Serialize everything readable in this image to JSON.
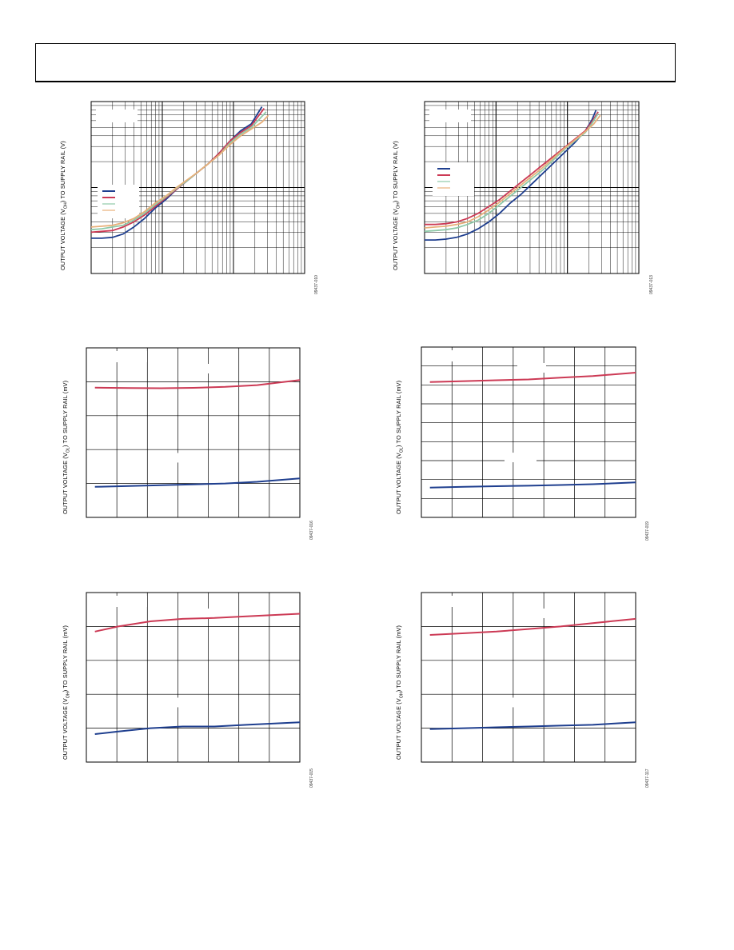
{
  "page": {},
  "charts": [
    {
      "id": "c1",
      "type": "line",
      "scale": "log",
      "ylabel_pre": "OUTPUT VOLTAGE (V",
      "ylabel_sub": "OH",
      "ylabel_post": ") TO SUPPLY RAIL (V)",
      "fig_id": "09437-010",
      "legend_colors": [
        "#1f3f8f",
        "#cc3a55",
        "#8fc9a8",
        "#e8b07a"
      ],
      "series": [
        {
          "color": "#1f3f8f",
          "pts": [
            [
              0,
              0.205
            ],
            [
              0.05,
              0.205
            ],
            [
              0.1,
              0.21
            ],
            [
              0.15,
              0.23
            ],
            [
              0.2,
              0.27
            ],
            [
              0.25,
              0.32
            ],
            [
              0.3,
              0.38
            ],
            [
              0.35,
              0.43
            ],
            [
              0.4,
              0.49
            ],
            [
              0.45,
              0.54
            ],
            [
              0.5,
              0.59
            ],
            [
              0.55,
              0.64
            ],
            [
              0.6,
              0.7
            ],
            [
              0.65,
              0.77
            ],
            [
              0.7,
              0.83
            ],
            [
              0.75,
              0.87
            ],
            [
              0.78,
              0.93
            ],
            [
              0.8,
              0.97
            ]
          ]
        },
        {
          "color": "#cc3a55",
          "pts": [
            [
              0,
              0.24
            ],
            [
              0.05,
              0.245
            ],
            [
              0.1,
              0.25
            ],
            [
              0.15,
              0.27
            ],
            [
              0.2,
              0.3
            ],
            [
              0.25,
              0.34
            ],
            [
              0.3,
              0.39
            ],
            [
              0.35,
              0.44
            ],
            [
              0.4,
              0.49
            ],
            [
              0.45,
              0.54
            ],
            [
              0.5,
              0.59
            ],
            [
              0.55,
              0.64
            ],
            [
              0.6,
              0.7
            ],
            [
              0.65,
              0.77
            ],
            [
              0.7,
              0.82
            ],
            [
              0.75,
              0.86
            ],
            [
              0.78,
              0.91
            ],
            [
              0.81,
              0.96
            ]
          ]
        },
        {
          "color": "#8fc9a8",
          "pts": [
            [
              0,
              0.255
            ],
            [
              0.05,
              0.26
            ],
            [
              0.1,
              0.27
            ],
            [
              0.15,
              0.28
            ],
            [
              0.2,
              0.31
            ],
            [
              0.25,
              0.35
            ],
            [
              0.3,
              0.4
            ],
            [
              0.35,
              0.445
            ],
            [
              0.4,
              0.495
            ],
            [
              0.45,
              0.54
            ],
            [
              0.5,
              0.59
            ],
            [
              0.55,
              0.64
            ],
            [
              0.6,
              0.69
            ],
            [
              0.65,
              0.76
            ],
            [
              0.7,
              0.81
            ],
            [
              0.75,
              0.85
            ],
            [
              0.79,
              0.9
            ],
            [
              0.82,
              0.94
            ]
          ]
        },
        {
          "color": "#e8b07a",
          "pts": [
            [
              0,
              0.27
            ],
            [
              0.05,
              0.275
            ],
            [
              0.1,
              0.28
            ],
            [
              0.15,
              0.295
            ],
            [
              0.2,
              0.32
            ],
            [
              0.25,
              0.36
            ],
            [
              0.3,
              0.41
            ],
            [
              0.35,
              0.45
            ],
            [
              0.4,
              0.5
            ],
            [
              0.45,
              0.545
            ],
            [
              0.5,
              0.59
            ],
            [
              0.55,
              0.64
            ],
            [
              0.6,
              0.69
            ],
            [
              0.65,
              0.75
            ],
            [
              0.7,
              0.8
            ],
            [
              0.75,
              0.84
            ],
            [
              0.8,
              0.88
            ],
            [
              0.83,
              0.92
            ]
          ]
        }
      ]
    },
    {
      "id": "c2",
      "type": "line",
      "scale": "log",
      "ylabel_pre": "OUTPUT VOLTAGE (V",
      "ylabel_sub": "OH",
      "ylabel_post": ") TO SUPPLY RAIL (V)",
      "fig_id": "09437-013",
      "legend_colors": [
        "#1f3f8f",
        "#cc3a55",
        "#8fc9a8",
        "#e8b07a"
      ],
      "series": [
        {
          "color": "#1f3f8f",
          "pts": [
            [
              0,
              0.195
            ],
            [
              0.05,
              0.195
            ],
            [
              0.1,
              0.2
            ],
            [
              0.15,
              0.21
            ],
            [
              0.2,
              0.23
            ],
            [
              0.25,
              0.26
            ],
            [
              0.3,
              0.3
            ],
            [
              0.35,
              0.35
            ],
            [
              0.4,
              0.41
            ],
            [
              0.45,
              0.46
            ],
            [
              0.5,
              0.52
            ],
            [
              0.55,
              0.58
            ],
            [
              0.6,
              0.64
            ],
            [
              0.65,
              0.7
            ],
            [
              0.7,
              0.76
            ],
            [
              0.75,
              0.83
            ],
            [
              0.78,
              0.89
            ],
            [
              0.8,
              0.95
            ]
          ]
        },
        {
          "color": "#cc3a55",
          "pts": [
            [
              0,
              0.285
            ],
            [
              0.05,
              0.285
            ],
            [
              0.1,
              0.29
            ],
            [
              0.15,
              0.3
            ],
            [
              0.2,
              0.32
            ],
            [
              0.25,
              0.35
            ],
            [
              0.3,
              0.39
            ],
            [
              0.35,
              0.43
            ],
            [
              0.4,
              0.48
            ],
            [
              0.45,
              0.53
            ],
            [
              0.5,
              0.58
            ],
            [
              0.55,
              0.63
            ],
            [
              0.6,
              0.68
            ],
            [
              0.65,
              0.73
            ],
            [
              0.7,
              0.78
            ],
            [
              0.75,
              0.83
            ],
            [
              0.78,
              0.88
            ],
            [
              0.81,
              0.94
            ]
          ]
        },
        {
          "color": "#8fc9a8",
          "pts": [
            [
              0,
              0.245
            ],
            [
              0.05,
              0.25
            ],
            [
              0.1,
              0.255
            ],
            [
              0.15,
              0.265
            ],
            [
              0.2,
              0.285
            ],
            [
              0.25,
              0.31
            ],
            [
              0.3,
              0.35
            ],
            [
              0.35,
              0.4
            ],
            [
              0.4,
              0.45
            ],
            [
              0.45,
              0.5
            ],
            [
              0.5,
              0.55
            ],
            [
              0.55,
              0.6
            ],
            [
              0.6,
              0.66
            ],
            [
              0.65,
              0.72
            ],
            [
              0.7,
              0.77
            ],
            [
              0.75,
              0.82
            ],
            [
              0.78,
              0.87
            ],
            [
              0.81,
              0.93
            ]
          ]
        },
        {
          "color": "#e8b07a",
          "pts": [
            [
              0,
              0.265
            ],
            [
              0.05,
              0.27
            ],
            [
              0.1,
              0.275
            ],
            [
              0.15,
              0.285
            ],
            [
              0.2,
              0.3
            ],
            [
              0.25,
              0.33
            ],
            [
              0.3,
              0.37
            ],
            [
              0.35,
              0.415
            ],
            [
              0.4,
              0.465
            ],
            [
              0.45,
              0.515
            ],
            [
              0.5,
              0.565
            ],
            [
              0.55,
              0.615
            ],
            [
              0.6,
              0.67
            ],
            [
              0.65,
              0.725
            ],
            [
              0.7,
              0.775
            ],
            [
              0.75,
              0.825
            ],
            [
              0.79,
              0.87
            ],
            [
              0.82,
              0.92
            ]
          ]
        }
      ]
    },
    {
      "id": "c3",
      "type": "line",
      "scale": "linear",
      "xdiv": 7,
      "ydiv": 5,
      "ylabel_pre": "OUTPUT VOLTAGE (V",
      "ylabel_sub": "OL",
      "ylabel_post": ") TO SUPPLY RAIL (mV)",
      "fig_id": "09437-016",
      "series": [
        {
          "color": "#cc3a55",
          "pts": [
            [
              0.04,
              0.765
            ],
            [
              0.2,
              0.763
            ],
            [
              0.35,
              0.762
            ],
            [
              0.5,
              0.764
            ],
            [
              0.65,
              0.77
            ],
            [
              0.8,
              0.78
            ],
            [
              1.0,
              0.81
            ]
          ]
        },
        {
          "color": "#1f3f8f",
          "pts": [
            [
              0.04,
              0.18
            ],
            [
              0.2,
              0.185
            ],
            [
              0.35,
              0.19
            ],
            [
              0.5,
              0.195
            ],
            [
              0.65,
              0.2
            ],
            [
              0.8,
              0.21
            ],
            [
              1.0,
              0.23
            ]
          ]
        }
      ]
    },
    {
      "id": "c4",
      "type": "line",
      "scale": "linear",
      "xdiv": 7,
      "ydiv": 9,
      "ylabel_pre": "OUTPUT VOLTAGE (V",
      "ylabel_sub": "OL",
      "ylabel_post": ") TO SUPPLY RAIL (mV)",
      "fig_id": "09437-019",
      "series": [
        {
          "color": "#cc3a55",
          "pts": [
            [
              0.04,
              0.795
            ],
            [
              0.2,
              0.8
            ],
            [
              0.35,
              0.805
            ],
            [
              0.5,
              0.81
            ],
            [
              0.65,
              0.82
            ],
            [
              0.8,
              0.83
            ],
            [
              1.0,
              0.85
            ]
          ]
        },
        {
          "color": "#1f3f8f",
          "pts": [
            [
              0.04,
              0.175
            ],
            [
              0.2,
              0.18
            ],
            [
              0.35,
              0.183
            ],
            [
              0.5,
              0.186
            ],
            [
              0.65,
              0.19
            ],
            [
              0.8,
              0.195
            ],
            [
              1.0,
              0.205
            ]
          ]
        }
      ]
    },
    {
      "id": "c5",
      "type": "line",
      "scale": "linear",
      "xdiv": 7,
      "ydiv": 5,
      "ylabel_pre": "OUTPUT VOLTAGE (V",
      "ylabel_sub": "OH",
      "ylabel_post": ") TO SUPPLY RAIL (mV)",
      "fig_id": "09437-015",
      "series": [
        {
          "color": "#cc3a55",
          "pts": [
            [
              0.04,
              0.77
            ],
            [
              0.15,
              0.8
            ],
            [
              0.3,
              0.83
            ],
            [
              0.45,
              0.845
            ],
            [
              0.6,
              0.85
            ],
            [
              0.75,
              0.86
            ],
            [
              1.0,
              0.875
            ]
          ]
        },
        {
          "color": "#1f3f8f",
          "pts": [
            [
              0.04,
              0.165
            ],
            [
              0.15,
              0.18
            ],
            [
              0.3,
              0.2
            ],
            [
              0.45,
              0.21
            ],
            [
              0.6,
              0.21
            ],
            [
              0.75,
              0.22
            ],
            [
              1.0,
              0.235
            ]
          ]
        }
      ]
    },
    {
      "id": "c6",
      "type": "line",
      "scale": "linear",
      "xdiv": 7,
      "ydiv": 5,
      "ylabel_pre": "OUTPUT VOLTAGE (V",
      "ylabel_sub": "OH",
      "ylabel_post": ") TO SUPPLY RAIL (mV)",
      "fig_id": "09437-117",
      "series": [
        {
          "color": "#cc3a55",
          "pts": [
            [
              0.04,
              0.75
            ],
            [
              0.2,
              0.76
            ],
            [
              0.35,
              0.77
            ],
            [
              0.5,
              0.785
            ],
            [
              0.65,
              0.8
            ],
            [
              0.8,
              0.82
            ],
            [
              1.0,
              0.845
            ]
          ]
        },
        {
          "color": "#1f3f8f",
          "pts": [
            [
              0.04,
              0.195
            ],
            [
              0.2,
              0.2
            ],
            [
              0.35,
              0.205
            ],
            [
              0.5,
              0.21
            ],
            [
              0.65,
              0.215
            ],
            [
              0.8,
              0.22
            ],
            [
              1.0,
              0.235
            ]
          ]
        }
      ]
    }
  ]
}
